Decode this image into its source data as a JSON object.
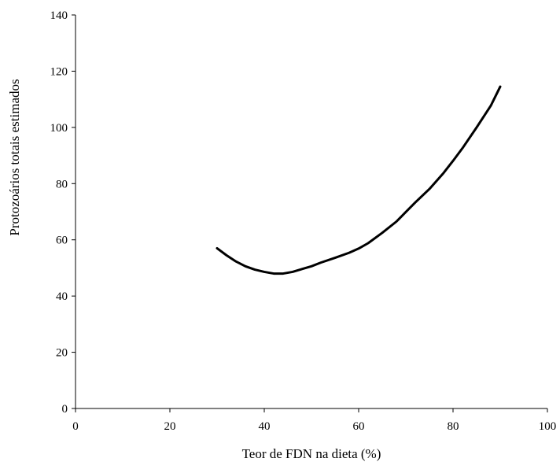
{
  "chart_data": {
    "type": "line",
    "title": "",
    "xlabel": "Teor de FDN na dieta (%)",
    "ylabel": "Protozoários totais estimados",
    "xlim": [
      0,
      100
    ],
    "ylim": [
      0,
      140
    ],
    "x_ticks": [
      0,
      20,
      40,
      60,
      80,
      100
    ],
    "y_ticks": [
      0,
      20,
      40,
      60,
      80,
      100,
      120,
      140
    ],
    "grid": false,
    "legend": "none",
    "series": [
      {
        "color": "#000000",
        "x": [
          30,
          32,
          34,
          36,
          38,
          40,
          42,
          44,
          46,
          48,
          50,
          52,
          55,
          58,
          60,
          62,
          65,
          68,
          70,
          72,
          75,
          78,
          80,
          82,
          85,
          88,
          90
        ],
        "y": [
          57.0,
          54.5,
          52.3,
          50.6,
          49.4,
          48.6,
          48.0,
          48.0,
          48.6,
          49.6,
          50.6,
          51.9,
          53.6,
          55.4,
          56.9,
          58.8,
          62.5,
          66.5,
          69.9,
          73.3,
          78.1,
          83.8,
          88.1,
          92.6,
          100.0,
          107.7,
          114.5
        ]
      }
    ]
  }
}
